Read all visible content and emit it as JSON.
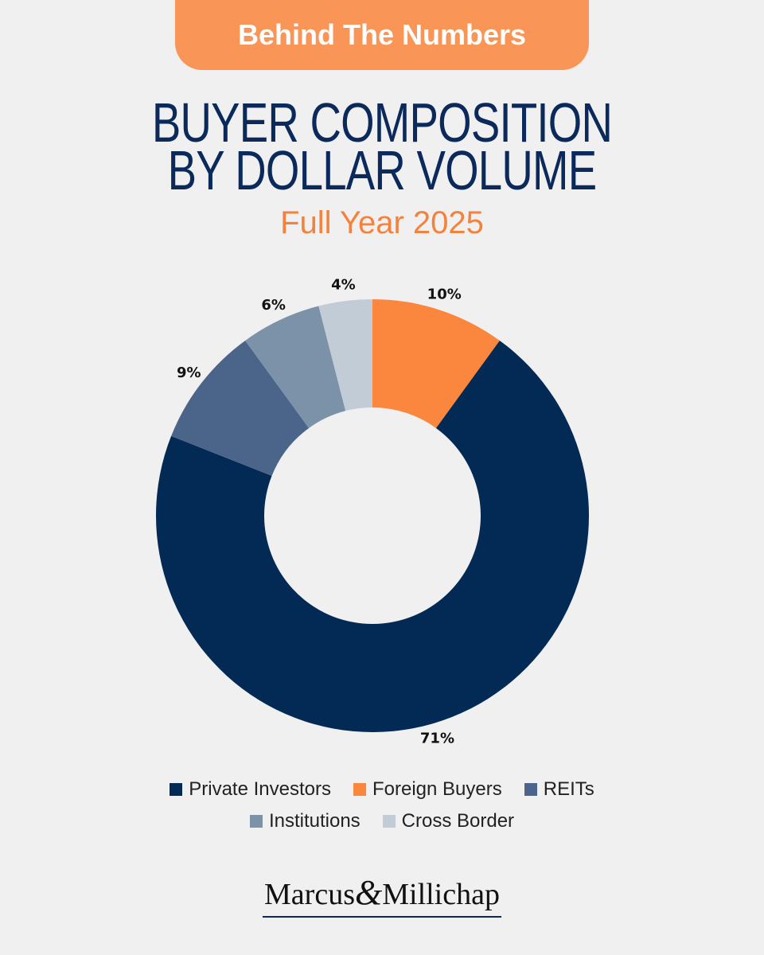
{
  "banner": {
    "label": "Behind The Numbers"
  },
  "header": {
    "title_line1": "BUYER COMPOSITION",
    "title_line2": "BY DOLLAR VOLUME",
    "subtitle": "Full Year 2025"
  },
  "chart_data": {
    "type": "pie",
    "variant": "donut",
    "title": "BUYER COMPOSITION BY DOLLAR VOLUME",
    "subtitle": "Full Year 2025",
    "categories": [
      "Foreign Buyers",
      "Private Investors",
      "REITs",
      "Institutions",
      "Cross Border"
    ],
    "values": [
      10,
      71,
      9,
      6,
      4
    ],
    "labels": [
      "10%",
      "71%",
      "9%",
      "6%",
      "4%"
    ],
    "colors": [
      "#fb863d",
      "#032a55",
      "#4b658a",
      "#7c92a8",
      "#c2ccd7"
    ],
    "legend_placement": "bottom",
    "legend_order": [
      "Private Investors",
      "Foreign Buyers",
      "REITs",
      "Institutions",
      "Cross Border"
    ]
  },
  "legend": {
    "row1": [
      {
        "label": "Private Investors",
        "color": "#032a55"
      },
      {
        "label": "Foreign Buyers",
        "color": "#fb863d"
      },
      {
        "label": "REITs",
        "color": "#4b658a"
      }
    ],
    "row2": [
      {
        "label": "Institutions",
        "color": "#7c92a8"
      },
      {
        "label": "Cross Border",
        "color": "#c2ccd7"
      }
    ]
  },
  "logo": {
    "part1": "Marcus",
    "amp": "&",
    "part2": "Millichap"
  }
}
